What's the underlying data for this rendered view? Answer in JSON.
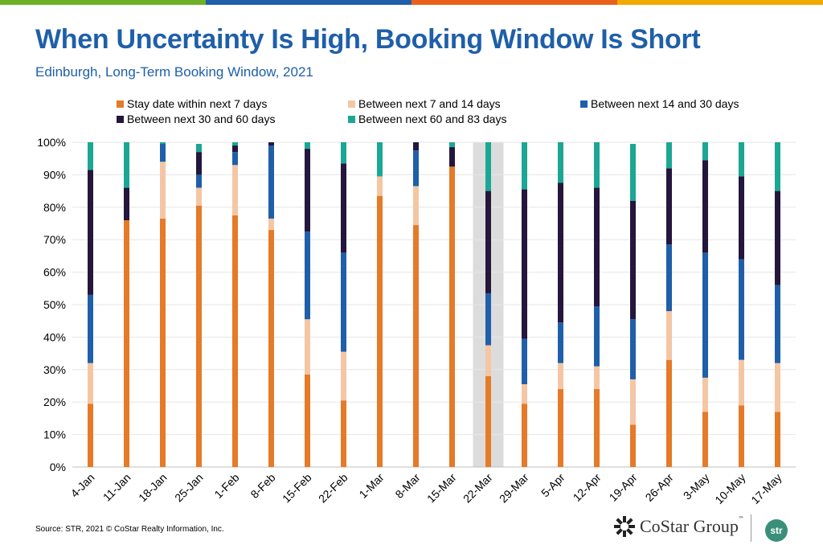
{
  "header": {
    "title": "When Uncertainty Is High, Booking Window Is Short",
    "subtitle": "Edinburgh, Long-Term Booking Window, 2021",
    "bar_colors": [
      "#6eb027",
      "#1f5fa9",
      "#e8601c",
      "#f2a900"
    ]
  },
  "chart_data": {
    "type": "bar",
    "stacked": true,
    "categories": [
      "4-Jan",
      "11-Jan",
      "18-Jan",
      "25-Jan",
      "1-Feb",
      "8-Feb",
      "15-Feb",
      "22-Feb",
      "1-Mar",
      "8-Mar",
      "15-Mar",
      "22-Mar",
      "29-Mar",
      "5-Apr",
      "12-Apr",
      "19-Apr",
      "26-Apr",
      "3-May",
      "10-May",
      "17-May"
    ],
    "series": [
      {
        "name": "Stay date within next 7 days",
        "color": "#e57a28",
        "values": [
          19.5,
          76,
          76.5,
          80.5,
          77.5,
          73,
          28.5,
          20.5,
          83.5,
          74.5,
          92.5,
          28,
          19.5,
          24,
          24,
          13,
          33,
          17,
          19,
          17
        ]
      },
      {
        "name": "Between next 7 and 14 days",
        "color": "#f4c6a4",
        "values": [
          12.5,
          0,
          17.5,
          5.5,
          15.5,
          3.5,
          17,
          15,
          6,
          12,
          0,
          9.5,
          6,
          8,
          7,
          14,
          15,
          10.5,
          14,
          15
        ]
      },
      {
        "name": "Between next 14 and 30 days",
        "color": "#1f5fa9",
        "values": [
          21,
          0,
          5.5,
          4,
          4,
          22.5,
          27,
          30.5,
          0,
          11,
          0,
          16,
          14,
          12.5,
          18.5,
          18.5,
          20.5,
          38.5,
          31,
          24
        ]
      },
      {
        "name": "Between next 30 and 60 days",
        "color": "#24163c",
        "values": [
          38.5,
          10,
          0,
          7,
          2,
          1,
          25.5,
          27.5,
          0,
          2.5,
          6,
          31.5,
          46,
          43,
          36.5,
          36.5,
          23.5,
          28.5,
          25.5,
          29
        ]
      },
      {
        "name": "Between next 60 and 83 days",
        "color": "#1ba794",
        "values": [
          8.5,
          14,
          0.5,
          2.5,
          1,
          0,
          2,
          6.5,
          10.5,
          0,
          1.5,
          15,
          14.5,
          12.5,
          14,
          17.5,
          8,
          5.5,
          10.5,
          15
        ]
      }
    ],
    "ylim": [
      0,
      100
    ],
    "yticks": [
      "0%",
      "10%",
      "20%",
      "30%",
      "40%",
      "50%",
      "60%",
      "70%",
      "80%",
      "90%",
      "100%"
    ],
    "highlight_category": "22-Mar",
    "legend_position": "top",
    "grid": true,
    "title": "When Uncertainty Is High, Booking Window Is Short",
    "xlabel": "",
    "ylabel": ""
  },
  "footer": {
    "source": "Source: STR, 2021 © CoStar Realty Information, Inc.",
    "logo_text": "CoStar Group",
    "logo_tm": "™",
    "badge": "str"
  }
}
